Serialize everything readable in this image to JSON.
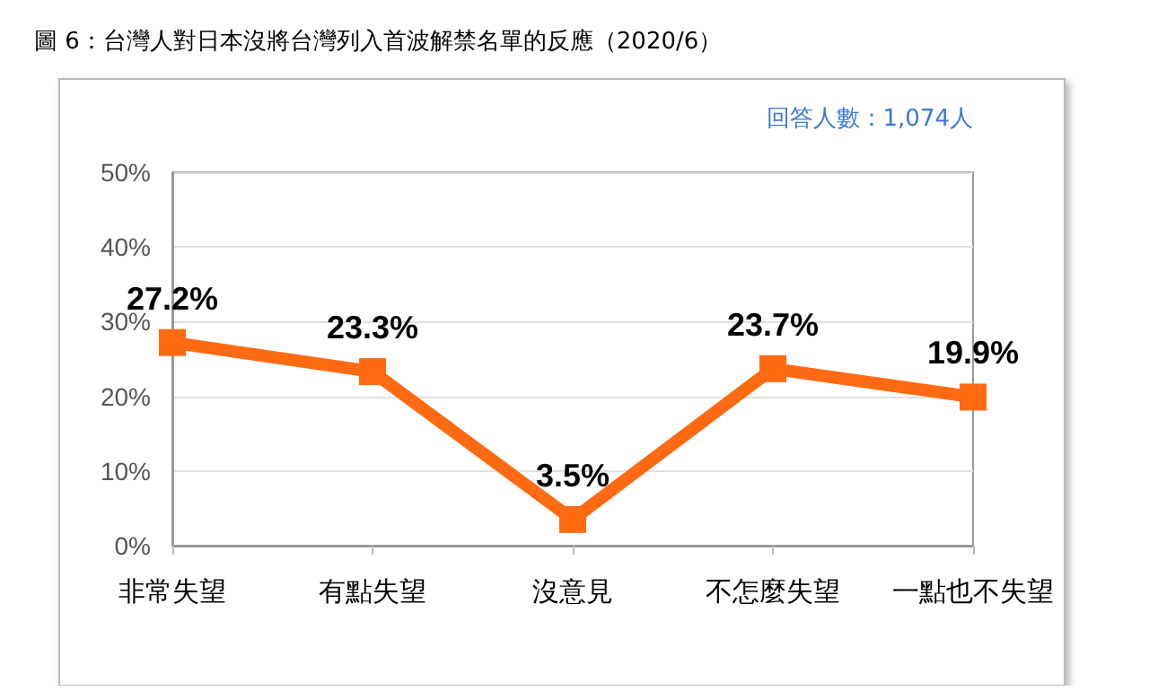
{
  "chart_data": {
    "type": "line",
    "title": "圖 6：台灣人對日本沒將台灣列入首波解禁名單的反應（2020/6）",
    "annotations": [
      "回答人數：1,074人"
    ],
    "categories": [
      "非常失望",
      "有點失望",
      "沒意見",
      "不怎麼失望",
      "一點也不失望"
    ],
    "series": [
      {
        "color": "#ff6a13",
        "values": [
          27.2,
          23.3,
          3.5,
          23.7,
          19.9
        ],
        "value_labels": [
          "27.2%",
          "23.3%",
          "3.5%",
          "23.7%",
          "19.9%"
        ]
      }
    ],
    "ylim": [
      0,
      50
    ],
    "yticks": [
      {
        "value": 0,
        "label": "0%"
      },
      {
        "value": 10,
        "label": "10%"
      },
      {
        "value": 20,
        "label": "20%"
      },
      {
        "value": 30,
        "label": "30%"
      },
      {
        "value": 40,
        "label": "40%"
      },
      {
        "value": 50,
        "label": "50%"
      }
    ],
    "grid": "y",
    "marker": "square",
    "line_style": "solid"
  }
}
